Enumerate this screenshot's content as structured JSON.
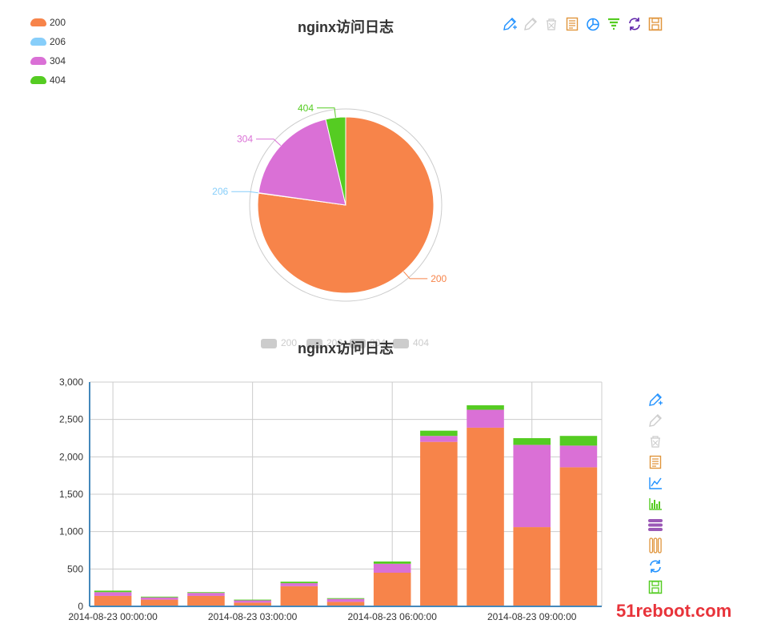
{
  "pie_chart": {
    "title": "nginx访问日志",
    "legend": [
      {
        "label": "200",
        "color": "#f7844a"
      },
      {
        "label": "206",
        "color": "#87cefa"
      },
      {
        "label": "304",
        "color": "#da70d6"
      },
      {
        "label": "404",
        "color": "#55cc22"
      }
    ],
    "toolbox": [
      "pen-icon",
      "pen-disabled-icon",
      "trash-icon",
      "data-view-icon",
      "pie-icon",
      "funnel-icon",
      "refresh-icon",
      "save-icon"
    ]
  },
  "bar_chart": {
    "title": "nginx访问日志",
    "legend": [
      "200",
      "206",
      "304",
      "404"
    ],
    "toolbox": [
      "pen-icon",
      "pen-disabled-icon",
      "trash-icon",
      "data-view-icon",
      "line-chart-icon",
      "bar-chart-icon",
      "stack-icon",
      "tiled-icon",
      "refresh-icon",
      "save-icon"
    ]
  },
  "watermark": "51reboot.com",
  "chart_data": [
    {
      "type": "pie",
      "title": "nginx访问日志",
      "slices": [
        {
          "label": "200",
          "value": 11000,
          "color": "#f7844a"
        },
        {
          "label": "206",
          "value": 10,
          "color": "#87cefa"
        },
        {
          "label": "304",
          "value": 2725,
          "color": "#da70d6"
        },
        {
          "label": "404",
          "value": 520,
          "color": "#55cc22"
        }
      ]
    },
    {
      "type": "bar",
      "stacked": true,
      "title": "nginx访问日志",
      "ylim": [
        0,
        3000
      ],
      "yticks": [
        "0",
        "500",
        "1,000",
        "1,500",
        "2,000",
        "2,500",
        "3,000"
      ],
      "xticks": [
        "2014-08-23 00:00:00",
        "2014-08-23 03:00:00",
        "2014-08-23 06:00:00",
        "2014-08-23 09:00:00"
      ],
      "categories": [
        "2014-08-23 00:00:00",
        "2014-08-23 01:00:00",
        "2014-08-23 02:00:00",
        "2014-08-23 03:00:00",
        "2014-08-23 04:00:00",
        "2014-08-23 05:00:00",
        "2014-08-23 06:00:00",
        "2014-08-23 07:00:00",
        "2014-08-23 08:00:00",
        "2014-08-23 09:00:00",
        "2014-08-23 10:00:00"
      ],
      "grid": true,
      "series": [
        {
          "name": "200",
          "color": "#f7844a",
          "values": [
            140,
            90,
            140,
            50,
            270,
            60,
            450,
            2200,
            2390,
            1060,
            1860
          ]
        },
        {
          "name": "206",
          "color": "#87cefa",
          "values": [
            0,
            0,
            0,
            0,
            0,
            0,
            0,
            0,
            0,
            0,
            0
          ]
        },
        {
          "name": "304",
          "color": "#da70d6",
          "values": [
            50,
            30,
            40,
            30,
            40,
            40,
            120,
            80,
            240,
            1100,
            290
          ]
        },
        {
          "name": "404",
          "color": "#55cc22",
          "values": [
            20,
            10,
            10,
            10,
            20,
            10,
            30,
            70,
            60,
            90,
            130
          ]
        }
      ]
    }
  ]
}
